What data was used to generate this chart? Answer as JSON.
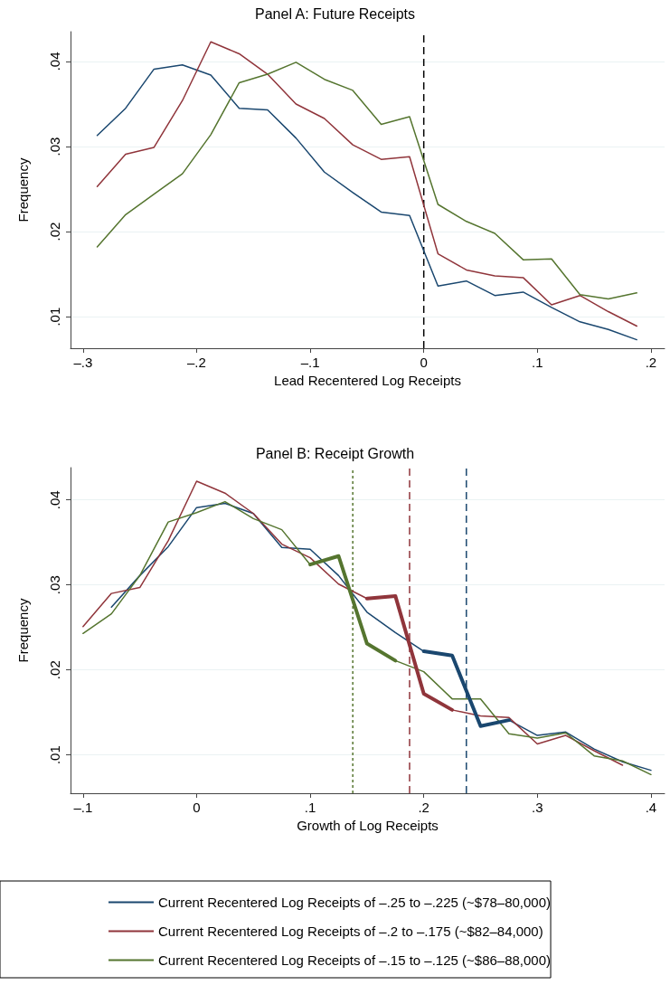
{
  "chart_data": [
    {
      "type": "line",
      "title": "Panel A: Future Receipts",
      "xlabel": "Lead Recentered Log Receipts",
      "ylabel": "Frequency",
      "xlim": [
        -0.311,
        0.212
      ],
      "ylim": [
        0.0063,
        0.0435
      ],
      "xticks": [
        {
          "value": -0.3,
          "label": "–.3"
        },
        {
          "value": -0.2,
          "label": "–.2"
        },
        {
          "value": -0.1,
          "label": "–.1"
        },
        {
          "value": 0,
          "label": "0"
        },
        {
          "value": 0.1,
          "label": ".1"
        },
        {
          "value": 0.2,
          "label": ".2"
        }
      ],
      "yticks": [
        {
          "value": 0.01,
          "label": ".01"
        },
        {
          "value": 0.02,
          "label": ".02"
        },
        {
          "value": 0.03,
          "label": ".03"
        },
        {
          "value": 0.04,
          "label": ".04"
        }
      ],
      "grid": "y",
      "legend": false,
      "marker": "none",
      "line_style": "solid",
      "ref_lines": [
        {
          "axis": "x",
          "value": 0,
          "color": "#000000",
          "line_style": "dashed"
        }
      ],
      "series": [
        {
          "color": "#1a476f",
          "x": [
            -0.2875,
            -0.2625,
            -0.2375,
            -0.2125,
            -0.1875,
            -0.1625,
            -0.1375,
            -0.1125,
            -0.0875,
            -0.0625,
            -0.0375,
            -0.0125,
            0.0125,
            0.0375,
            0.0625,
            0.0875,
            0.1125,
            0.1375,
            0.1625,
            0.1875
          ],
          "values": [
            0.0313,
            0.0345,
            0.0391,
            0.0396,
            0.0384,
            0.0345,
            0.0343,
            0.031,
            0.027,
            0.0246,
            0.0223,
            0.0219,
            0.0136,
            0.0142,
            0.0125,
            0.0129,
            0.0111,
            0.0094,
            0.0085,
            0.0073
          ]
        },
        {
          "color": "#90353b",
          "x": [
            -0.2875,
            -0.2625,
            -0.2375,
            -0.2125,
            -0.1875,
            -0.1625,
            -0.1375,
            -0.1125,
            -0.0875,
            -0.0625,
            -0.0375,
            -0.0125,
            0.0125,
            0.0375,
            0.0625,
            0.0875,
            0.1125,
            0.1375,
            0.1625,
            0.1875
          ],
          "values": [
            0.0253,
            0.0291,
            0.0299,
            0.0354,
            0.0423,
            0.0409,
            0.0385,
            0.035,
            0.0333,
            0.0302,
            0.0285,
            0.0288,
            0.0174,
            0.0155,
            0.0148,
            0.0146,
            0.0114,
            0.0125,
            0.0106,
            0.0089
          ]
        },
        {
          "color": "#55752f",
          "x": [
            -0.2875,
            -0.2625,
            -0.2375,
            -0.2125,
            -0.1875,
            -0.1625,
            -0.1375,
            -0.1125,
            -0.0875,
            -0.0625,
            -0.0375,
            -0.0125,
            0.0125,
            0.0375,
            0.0625,
            0.0875,
            0.1125,
            0.1375,
            0.1625,
            0.1875
          ],
          "values": [
            0.0182,
            0.022,
            0.0244,
            0.0268,
            0.0314,
            0.0375,
            0.0385,
            0.0399,
            0.0379,
            0.0366,
            0.0326,
            0.0335,
            0.0232,
            0.0212,
            0.0198,
            0.0167,
            0.0168,
            0.0126,
            0.0121,
            0.0128
          ]
        }
      ]
    },
    {
      "type": "line",
      "title": "Panel B: Receipt Growth",
      "xlabel": "Growth of Log Receipts",
      "ylabel": "Frequency",
      "xlim": [
        -0.111,
        0.412
      ],
      "ylim": [
        0.0055,
        0.0438
      ],
      "xticks": [
        {
          "value": -0.1,
          "label": "–.1"
        },
        {
          "value": 0,
          "label": "0"
        },
        {
          "value": 0.1,
          "label": ".1"
        },
        {
          "value": 0.2,
          "label": ".2"
        },
        {
          "value": 0.3,
          "label": ".3"
        },
        {
          "value": 0.4,
          "label": ".4"
        }
      ],
      "yticks": [
        {
          "value": 0.01,
          "label": ".01"
        },
        {
          "value": 0.02,
          "label": ".02"
        },
        {
          "value": 0.03,
          "label": ".03"
        },
        {
          "value": 0.04,
          "label": ".04"
        }
      ],
      "grid": "y",
      "legend": "bottom",
      "marker": "none",
      "line_style": "solid",
      "ref_lines": [
        {
          "axis": "x",
          "value": 0.1375,
          "color": "#55752f",
          "line_style": "dotted"
        },
        {
          "axis": "x",
          "value": 0.1875,
          "color": "#90353b",
          "line_style": "dashed"
        },
        {
          "axis": "x",
          "value": 0.2375,
          "color": "#1a476f",
          "line_style": "dashed"
        }
      ],
      "series": [
        {
          "name": "Current Recentered Log Receipts of –.25 to –.225 (~$78–80,000)",
          "color": "#1a476f",
          "x": [
            -0.075,
            -0.05,
            -0.025,
            0,
            0.025,
            0.05,
            0.075,
            0.1,
            0.125,
            0.15,
            0.175,
            0.2,
            0.225,
            0.25,
            0.275,
            0.3,
            0.325,
            0.35,
            0.375,
            0.4
          ],
          "values": [
            0.0274,
            0.0311,
            0.0345,
            0.0391,
            0.0396,
            0.0384,
            0.0344,
            0.0342,
            0.0311,
            0.0268,
            0.0244,
            0.0222,
            0.0217,
            0.0134,
            0.0141,
            0.0123,
            0.0127,
            0.0107,
            0.0092,
            0.0082
          ]
        },
        {
          "name": "Current Recentered Log Receipts of –.2 to –.175 (~$82–84,000)",
          "color": "#90353b",
          "x": [
            -0.1,
            -0.075,
            -0.05,
            -0.025,
            0,
            0.025,
            0.05,
            0.075,
            0.1,
            0.125,
            0.15,
            0.175,
            0.2,
            0.225,
            0.25,
            0.275,
            0.3,
            0.325,
            0.35,
            0.375
          ],
          "values": [
            0.0251,
            0.029,
            0.0297,
            0.0352,
            0.0422,
            0.0408,
            0.0384,
            0.0348,
            0.0332,
            0.0301,
            0.0284,
            0.0287,
            0.0172,
            0.0153,
            0.0146,
            0.0144,
            0.0113,
            0.0123,
            0.0105,
            0.0088
          ]
        },
        {
          "name": "Current Recentered Log Receipts of –.15 to –.125 (~$86–88,000)",
          "color": "#55752f",
          "x": [
            -0.1,
            -0.075,
            -0.05,
            -0.025,
            0,
            0.025,
            0.05,
            0.075,
            0.1,
            0.125,
            0.15,
            0.175,
            0.2,
            0.225,
            0.25,
            0.275,
            0.3,
            0.325,
            0.35,
            0.375,
            0.4
          ],
          "values": [
            0.0243,
            0.0266,
            0.0311,
            0.0374,
            0.0385,
            0.0398,
            0.0378,
            0.0365,
            0.0324,
            0.0334,
            0.0231,
            0.0211,
            0.0198,
            0.0166,
            0.0166,
            0.0125,
            0.012,
            0.0126,
            0.0099,
            0.0093,
            0.0077
          ]
        },
        {
          "color": "#1a476f",
          "x": [
            0.2,
            0.225,
            0.25,
            0.275
          ],
          "values": [
            0.0222,
            0.0217,
            0.0134,
            0.0141
          ]
        },
        {
          "color": "#90353b",
          "x": [
            0.15,
            0.175,
            0.2,
            0.225
          ],
          "values": [
            0.0284,
            0.0287,
            0.0172,
            0.0153
          ]
        },
        {
          "color": "#55752f",
          "x": [
            0.1,
            0.125,
            0.15,
            0.175
          ],
          "values": [
            0.0324,
            0.0334,
            0.0231,
            0.0211
          ]
        }
      ]
    }
  ]
}
